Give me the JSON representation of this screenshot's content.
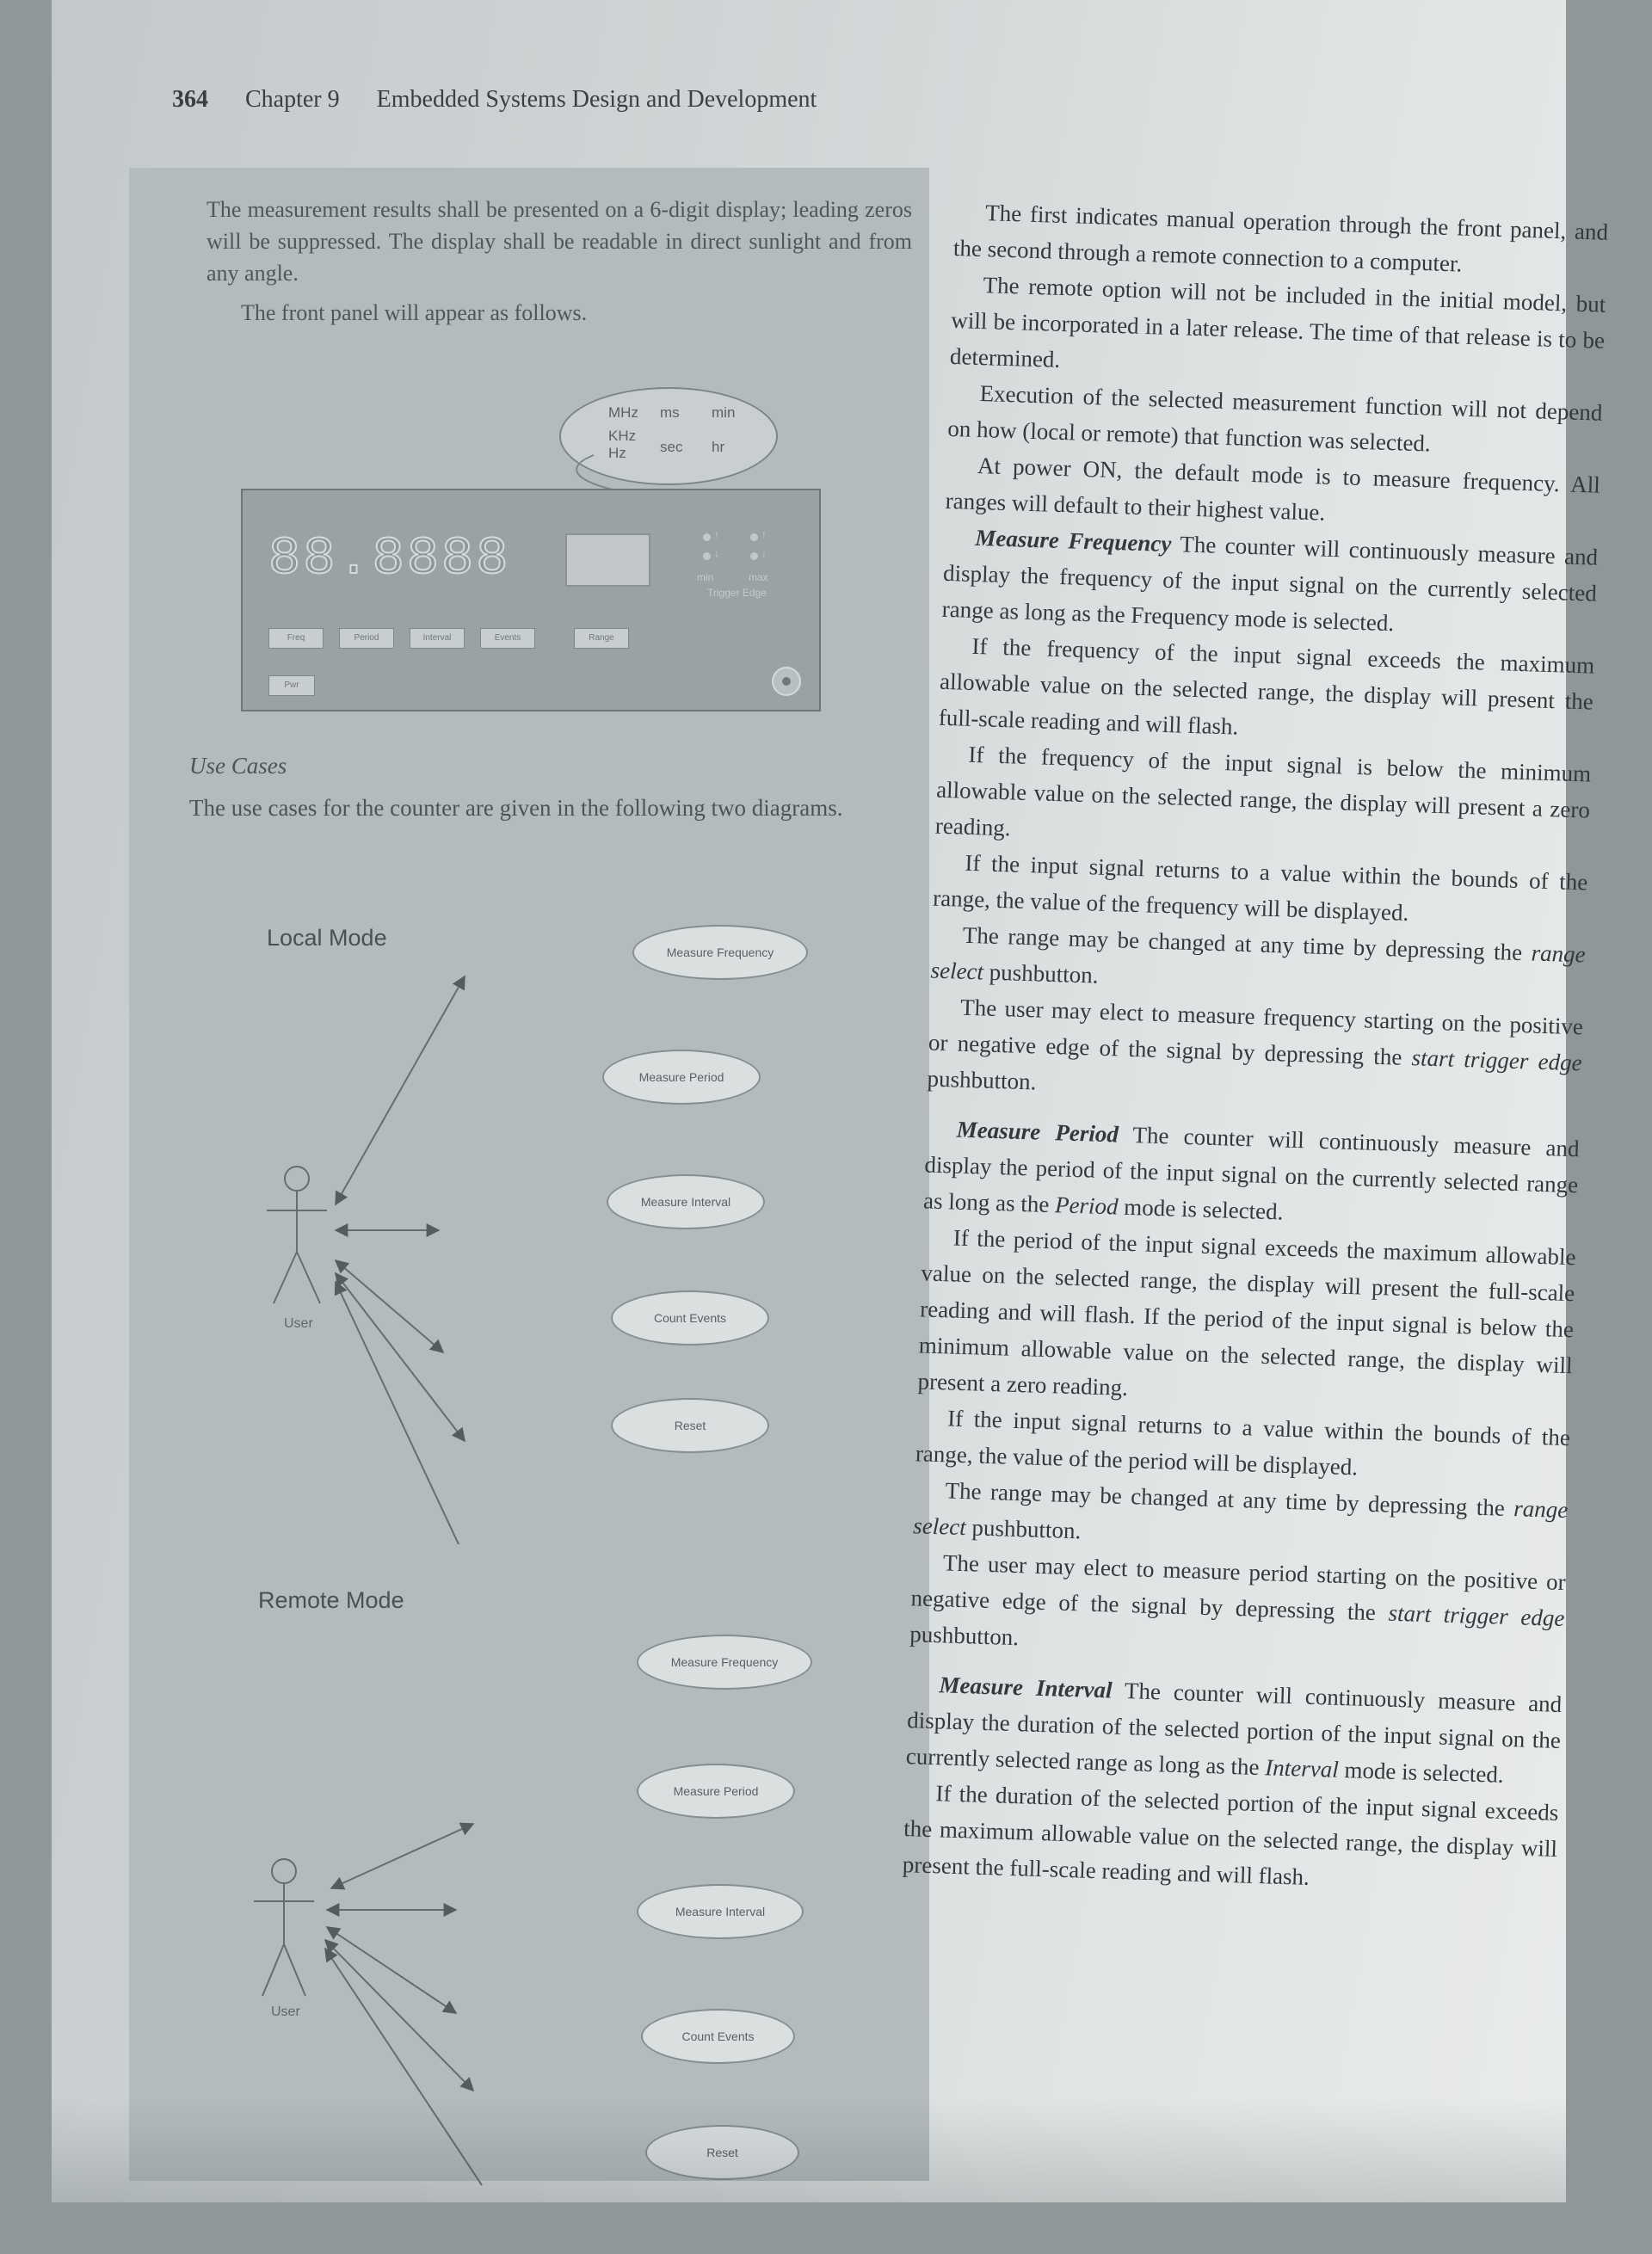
{
  "header": {
    "page_number": "364",
    "chapter": "Chapter 9",
    "book_title": "Embedded Systems Design and Development"
  },
  "sidebar": {
    "para1": "The measurement results shall be presented on a 6-digit display; leading zeros will be suppressed. The display shall be readable in direct sunlight and from any angle.",
    "para2": "The front panel will appear as follows.",
    "front_panel": {
      "units": [
        "MHz",
        "ms",
        "min",
        "KHz",
        "sec",
        "hr",
        "Hz"
      ],
      "display_digits": "88.8888",
      "trigger_labels": [
        "min",
        "max",
        "Trigger Edge"
      ],
      "trigger_arrows": [
        "↑",
        "↓",
        "↑",
        "↓"
      ],
      "buttons": [
        "Freq",
        "Period",
        "Interval",
        "Events",
        "Range"
      ],
      "power_button": "Pwr"
    },
    "use_cases_heading": "Use Cases",
    "use_cases_text": "The use cases for the counter are given in the following two diagrams.",
    "local_diagram": {
      "title": "Local Mode",
      "actor": "User",
      "use_cases": [
        "Measure Frequency",
        "Measure Period",
        "Measure Interval",
        "Count Events",
        "Reset"
      ]
    },
    "remote_diagram": {
      "title": "Remote Mode",
      "actor": "User",
      "use_cases": [
        "Measure Frequency",
        "Measure Period",
        "Measure Interval",
        "Count Events",
        "Reset"
      ]
    }
  },
  "body": {
    "p1": "The first indicates manual operation through the front panel, and the second through a remote connection to a computer.",
    "p2": "The remote option will not be included in the initial model, but will be incorporated in a later release. The time of that release is to be determined.",
    "p3": "Execution of the selected measurement function will not depend on how (local or remote) that function was selected.",
    "p4": "At power ON, the default mode is to measure frequency. All ranges will default to their highest value.",
    "freq_lead": "Measure Frequency",
    "freq_text": "The counter will continuously measure and display the frequency of the input signal on the currently selected range as long as the Frequency mode is selected.",
    "p6": "If the frequency of the input signal exceeds the maximum allowable value on the selected range, the display will present the full-scale reading and will flash.",
    "p7": "If the frequency of the input signal is below the minimum allowable value on the selected range, the display will present a zero reading.",
    "p8": "If the input signal returns to a value within the bounds of the range, the value of the frequency will be displayed.",
    "p9_a": "The range may be changed at any time by depressing the",
    "p9_i": "range select",
    "p9_b": "pushbutton.",
    "p10_a": "The user may elect to measure frequency starting on the positive or negative edge of the signal by depressing the",
    "p10_i": "start trigger edge",
    "p10_b": "pushbutton.",
    "period_lead": "Measure Period",
    "period_text_a": "The counter will continuously measure and display the period of the input signal on the currently selected range as long as the",
    "period_text_i": "Period",
    "period_text_b": "mode is selected.",
    "p12": "If the period of the input signal exceeds the maximum allowable value on the selected range, the display will present the full-scale reading and will flash. If the period of the input signal is below the minimum allowable value on the selected range, the display will present a zero reading.",
    "p13": "If the input signal returns to a value within the bounds of the range, the value of the period will be displayed.",
    "p14_a": "The range may be changed at any time by depressing the",
    "p14_i": "range select",
    "p14_b": "pushbutton.",
    "p15_a": "The user may elect to measure period starting on the positive or negative edge of the signal by depressing the",
    "p15_i": "start trigger edge",
    "p15_b": "pushbutton.",
    "interval_lead": "Measure Interval",
    "interval_text_a": "The counter will continuously measure and display the duration of the selected portion of the input signal on the currently selected range as long as the",
    "interval_text_i": "Interval",
    "interval_text_b": "mode is selected.",
    "p17": "If the duration of the selected portion of the input signal exceeds the maximum allowable value on the selected range, the display will present the full-scale reading and will flash."
  }
}
